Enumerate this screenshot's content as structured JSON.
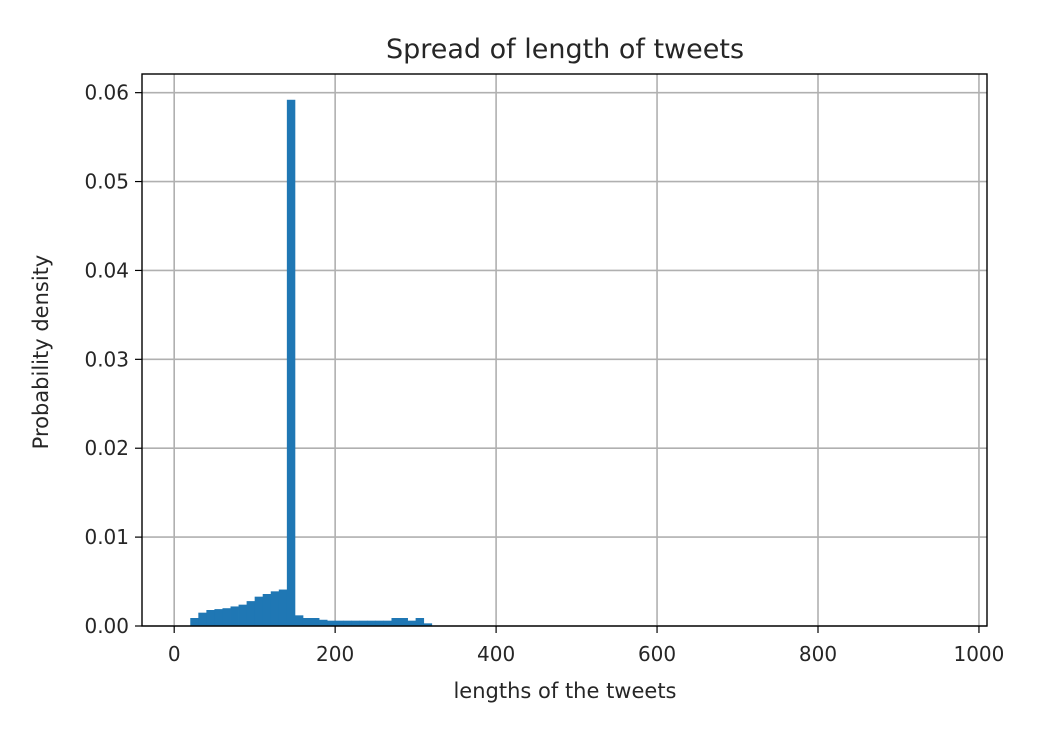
{
  "chart_data": {
    "type": "bar",
    "title": "Spread of length of tweets",
    "xlabel": "lengths of the tweets",
    "ylabel": "Probability density",
    "xlim": [
      -40,
      1010
    ],
    "ylim": [
      0,
      0.0621
    ],
    "xticks": [
      0,
      200,
      400,
      600,
      800,
      1000
    ],
    "xtick_labels": [
      "0",
      "200",
      "400",
      "600",
      "800",
      "1000"
    ],
    "yticks": [
      0,
      0.01,
      0.02,
      0.03,
      0.04,
      0.05,
      0.06
    ],
    "ytick_labels": [
      "0.00",
      "0.01",
      "0.02",
      "0.03",
      "0.04",
      "0.05",
      "0.06"
    ],
    "grid": true,
    "legend": "none",
    "bar_color": "#1f77b4",
    "bin_width": 10,
    "bins": [
      {
        "x0": 20,
        "x1": 30,
        "density": 0.0009
      },
      {
        "x0": 30,
        "x1": 40,
        "density": 0.0015
      },
      {
        "x0": 40,
        "x1": 50,
        "density": 0.0018
      },
      {
        "x0": 50,
        "x1": 60,
        "density": 0.0019
      },
      {
        "x0": 60,
        "x1": 70,
        "density": 0.002
      },
      {
        "x0": 70,
        "x1": 80,
        "density": 0.0022
      },
      {
        "x0": 80,
        "x1": 90,
        "density": 0.0024
      },
      {
        "x0": 90,
        "x1": 100,
        "density": 0.0028
      },
      {
        "x0": 100,
        "x1": 110,
        "density": 0.0033
      },
      {
        "x0": 110,
        "x1": 120,
        "density": 0.0036
      },
      {
        "x0": 120,
        "x1": 130,
        "density": 0.0039
      },
      {
        "x0": 130,
        "x1": 140,
        "density": 0.0041
      },
      {
        "x0": 140,
        "x1": 150,
        "density": 0.0592
      },
      {
        "x0": 150,
        "x1": 160,
        "density": 0.0012
      },
      {
        "x0": 160,
        "x1": 170,
        "density": 0.0009
      },
      {
        "x0": 170,
        "x1": 180,
        "density": 0.0009
      },
      {
        "x0": 180,
        "x1": 190,
        "density": 0.0007
      },
      {
        "x0": 190,
        "x1": 200,
        "density": 0.0006
      },
      {
        "x0": 200,
        "x1": 210,
        "density": 0.0006
      },
      {
        "x0": 210,
        "x1": 220,
        "density": 0.0006
      },
      {
        "x0": 220,
        "x1": 230,
        "density": 0.0006
      },
      {
        "x0": 230,
        "x1": 240,
        "density": 0.0006
      },
      {
        "x0": 240,
        "x1": 250,
        "density": 0.0006
      },
      {
        "x0": 250,
        "x1": 260,
        "density": 0.0006
      },
      {
        "x0": 260,
        "x1": 270,
        "density": 0.0006
      },
      {
        "x0": 270,
        "x1": 280,
        "density": 0.0009
      },
      {
        "x0": 280,
        "x1": 290,
        "density": 0.0009
      },
      {
        "x0": 290,
        "x1": 300,
        "density": 0.0006
      },
      {
        "x0": 300,
        "x1": 310,
        "density": 0.0009
      },
      {
        "x0": 310,
        "x1": 320,
        "density": 0.0003
      }
    ]
  }
}
